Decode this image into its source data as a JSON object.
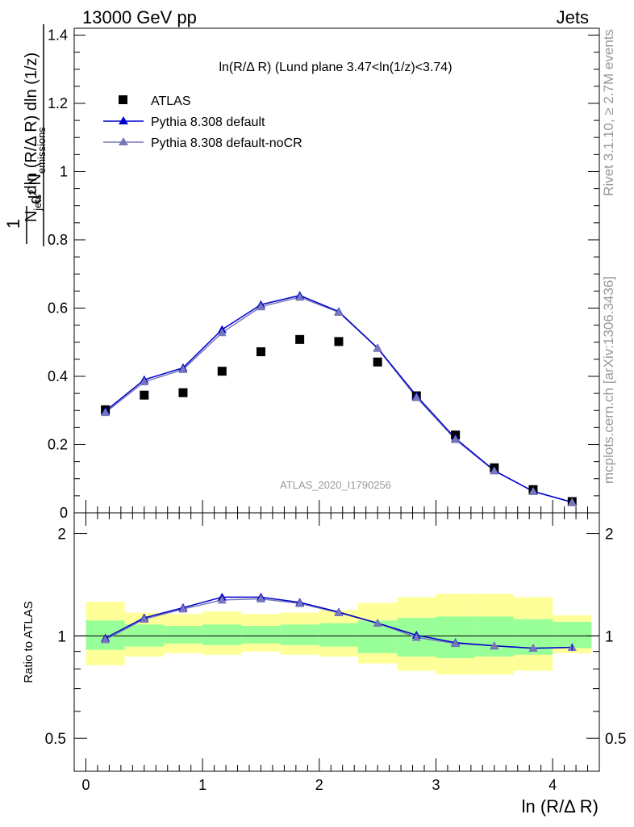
{
  "header": {
    "left": "13000 GeV pp",
    "right": "Jets"
  },
  "side_labels": {
    "rivet": "Rivet 3.1.10, ≥ 2.7M events",
    "mcplots": "mcplots.cern.ch [arXiv:1306.3436]"
  },
  "watermark": "ATLAS_2020_I1790256",
  "colors": {
    "atlas": "#000000",
    "default": "#0000cc",
    "nocr": "#7777bb",
    "band_inner": "#99ff99",
    "band_outer": "#ffff99"
  },
  "chart_data": [
    {
      "type": "scatter",
      "title": "ln(R/Δ R) (Lund plane 3.47<ln(1/z)<3.74)",
      "ylabel": "1/N_jets d²N_emissions / dln(R/Δ R) dln(1/z)",
      "xlim": [
        -0.1,
        4.4
      ],
      "ylim": [
        0,
        1.42
      ],
      "yticks": [
        "0",
        "0.2",
        "0.4",
        "0.6",
        "0.8",
        "1",
        "1.2",
        "1.4"
      ],
      "legend": [
        "ATLAS",
        "Pythia 8.308 default",
        "Pythia 8.308 default-noCR"
      ],
      "legend_position": "top-left",
      "x": [
        0.167,
        0.5,
        0.833,
        1.167,
        1.5,
        1.833,
        2.167,
        2.5,
        2.833,
        3.167,
        3.5,
        3.833,
        4.167
      ],
      "series": [
        {
          "name": "ATLAS",
          "values": [
            0.302,
            0.345,
            0.352,
            0.415,
            0.472,
            0.508,
            0.502,
            0.442,
            0.343,
            0.228,
            0.132,
            0.068,
            0.033
          ]
        },
        {
          "name": "Pythia 8.308 default",
          "values": [
            0.298,
            0.39,
            0.425,
            0.537,
            0.61,
            0.637,
            0.59,
            0.483,
            0.343,
            0.218,
            0.124,
            0.063,
            0.031
          ]
        },
        {
          "name": "Pythia 8.308 default-noCR",
          "values": [
            0.294,
            0.384,
            0.42,
            0.528,
            0.604,
            0.632,
            0.588,
            0.482,
            0.338,
            0.215,
            0.123,
            0.063,
            0.031
          ]
        }
      ]
    },
    {
      "type": "line",
      "ylabel": "Ratio to ATLAS",
      "xlabel": "ln (R/Δ R)",
      "xlim": [
        -0.1,
        4.4
      ],
      "ylim": [
        0.4,
        2.3
      ],
      "log_y": true,
      "xticks": [
        "0",
        "1",
        "2",
        "3",
        "4"
      ],
      "yticks": [
        "0.5",
        "1",
        "2"
      ],
      "bin_edges": [
        0,
        0.333,
        0.667,
        1.0,
        1.333,
        1.667,
        2.0,
        2.333,
        2.667,
        3.0,
        3.333,
        3.667,
        4.0,
        4.333
      ],
      "band_inner": {
        "lower": [
          0.91,
          0.93,
          0.95,
          0.94,
          0.95,
          0.94,
          0.93,
          0.89,
          0.87,
          0.86,
          0.87,
          0.88,
          0.92
        ],
        "upper": [
          1.11,
          1.08,
          1.07,
          1.08,
          1.07,
          1.08,
          1.09,
          1.11,
          1.13,
          1.14,
          1.14,
          1.12,
          1.1
        ]
      },
      "band_outer": {
        "lower": [
          0.82,
          0.87,
          0.89,
          0.88,
          0.9,
          0.88,
          0.87,
          0.83,
          0.79,
          0.77,
          0.77,
          0.79,
          0.89
        ],
        "upper": [
          1.26,
          1.17,
          1.16,
          1.18,
          1.16,
          1.17,
          1.19,
          1.25,
          1.3,
          1.33,
          1.33,
          1.3,
          1.15
        ]
      },
      "x": [
        0.167,
        0.5,
        0.833,
        1.167,
        1.5,
        1.833,
        2.167,
        2.5,
        2.833,
        3.167,
        3.5,
        3.833,
        4.167
      ],
      "series": [
        {
          "name": "Pythia 8.308 default",
          "values": [
            0.985,
            1.13,
            1.21,
            1.3,
            1.3,
            1.255,
            1.175,
            1.09,
            1.005,
            0.955,
            0.935,
            0.92,
            0.925
          ]
        },
        {
          "name": "Pythia 8.308 default-noCR",
          "values": [
            0.975,
            1.12,
            1.2,
            1.275,
            1.285,
            1.245,
            1.17,
            1.09,
            0.99,
            0.95,
            0.935,
            0.92,
            0.925
          ]
        }
      ]
    }
  ]
}
